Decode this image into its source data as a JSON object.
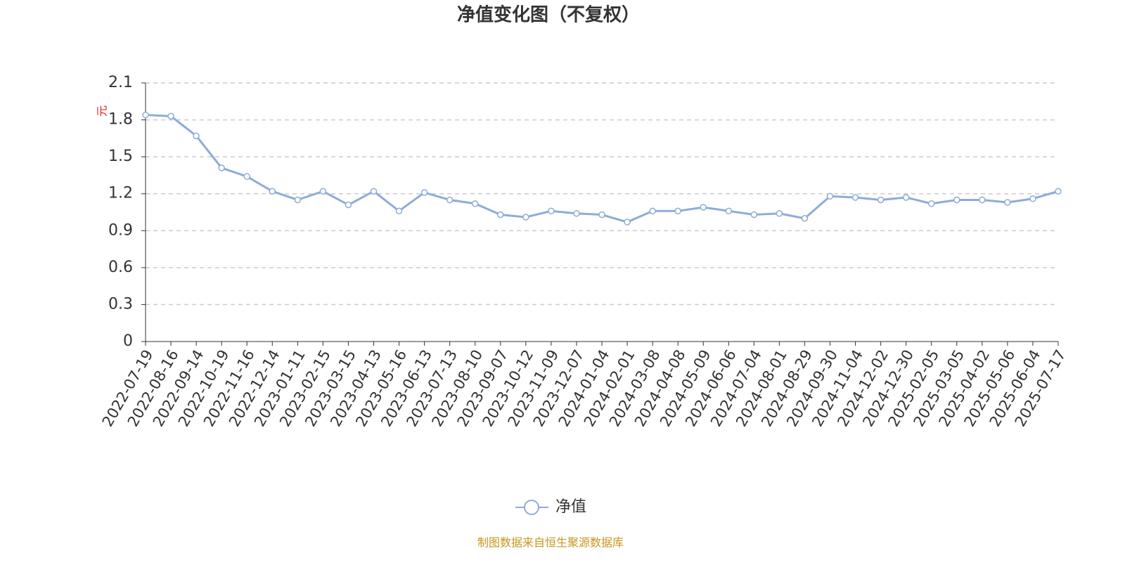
{
  "chart_data": {
    "type": "line",
    "title": "净值变化图（不复权）",
    "y_label": "元",
    "source": "制图数据来自恒生聚源数据库",
    "categories": [
      "2022-07-19",
      "2022-08-16",
      "2022-09-14",
      "2022-10-19",
      "2022-11-16",
      "2022-12-14",
      "2023-01-11",
      "2023-02-15",
      "2023-03-15",
      "2023-04-13",
      "2023-05-16",
      "2023-06-13",
      "2023-07-13",
      "2023-08-10",
      "2023-09-07",
      "2023-10-12",
      "2023-11-09",
      "2023-12-07",
      "2024-01-04",
      "2024-02-01",
      "2024-03-08",
      "2024-04-08",
      "2024-05-09",
      "2024-06-06",
      "2024-07-04",
      "2024-08-01",
      "2024-08-29",
      "2024-09-30",
      "2024-11-04",
      "2024-12-02",
      "2024-12-30",
      "2025-02-05",
      "2025-03-05",
      "2025-04-02",
      "2025-05-06",
      "2025-06-04",
      "2025-07-17"
    ],
    "series": [
      {
        "name": "净值",
        "color": "#8eacd8",
        "values": [
          1.84,
          1.83,
          1.67,
          1.41,
          1.34,
          1.22,
          1.15,
          1.22,
          1.11,
          1.22,
          1.06,
          1.21,
          1.15,
          1.12,
          1.03,
          1.01,
          1.06,
          1.04,
          1.03,
          0.97,
          1.06,
          1.06,
          1.09,
          1.06,
          1.03,
          1.04,
          1.0,
          1.18,
          1.17,
          1.15,
          1.17,
          1.12,
          1.15,
          1.15,
          1.13,
          1.16,
          1.22
        ]
      }
    ],
    "ylim": [
      0,
      2.1
    ],
    "yticks": [
      0,
      0.3,
      0.6,
      0.9,
      1.2,
      1.5,
      1.8,
      2.1
    ],
    "grid": true
  }
}
